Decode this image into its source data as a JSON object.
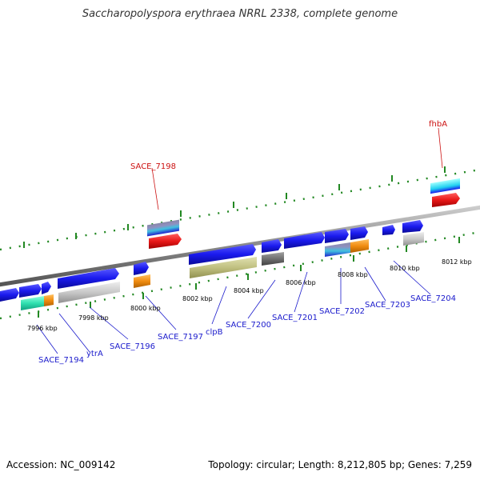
{
  "title": "Saccharopolyspora erythraea NRRL 2338, complete genome",
  "footer": {
    "accession": "Accession: NC_009142",
    "topology": "Topology: circular; Length: 8,212,805 bp; Genes: 7,259"
  },
  "colors": {
    "gene_blue": "#1a1aee",
    "feature_red": "#e81818",
    "feature_orange": "#f08c10",
    "feature_teal": "#30e0b0",
    "feature_gray": "#c8c8c8",
    "feature_olive": "#c0c080",
    "feature_darkgray": "#707070",
    "label_blue": "#1a1acc",
    "label_red": "#cc1111",
    "tick_green": "#228822"
  },
  "scale_labels": [
    "7996 kbp",
    "7998 kbp",
    "8000 kbp",
    "8002 kbp",
    "8004 kbp",
    "8006 kbp",
    "8008 kbp",
    "8010 kbp",
    "8012 kbp"
  ],
  "gene_labels_bottom": [
    "SACE_7194",
    "ytrA",
    "SACE_7196",
    "SACE_7197",
    "clpB",
    "SACE_7200",
    "SACE_7201",
    "SACE_7202",
    "SACE_7203",
    "SACE_7204"
  ],
  "gene_labels_top": [
    "SACE_7198",
    "fhbA"
  ]
}
